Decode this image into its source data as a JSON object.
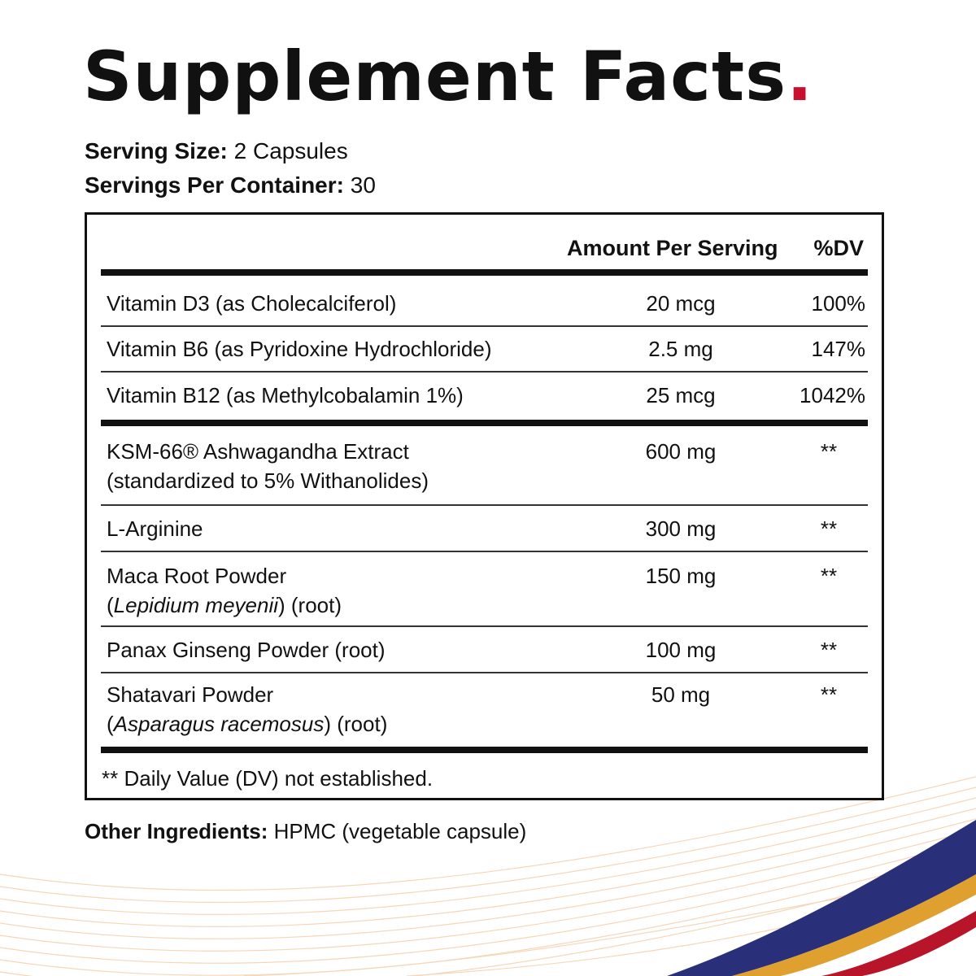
{
  "title": "Supplement Facts",
  "title_dot": ".",
  "serving_size": {
    "label": "Serving Size:",
    "value": " 2 Capsules"
  },
  "servings_per_container": {
    "label": "Servings Per Container:",
    "value": " 30"
  },
  "table": {
    "col_amount": "Amount Per Serving",
    "col_dv": "%DV",
    "rows": [
      {
        "name": "Vitamin D3 (as Cholecalciferol)",
        "amount": "20 mcg",
        "dv": "100%"
      },
      {
        "name": "Vitamin B6 (as Pyridoxine Hydrochloride)",
        "amount": "2.5 mg",
        "dv": "147%"
      },
      {
        "name": "Vitamin B12 (as Methylcobalamin 1%)",
        "amount": "25 mcg",
        "dv": "1042%"
      },
      {
        "name": "KSM-66® Ashwagandha Extract",
        "sub": "(standardized to 5% Withanolides)",
        "amount": "600 mg",
        "dv": "**"
      },
      {
        "name": "L-Arginine",
        "amount": "300 mg",
        "dv": "**"
      },
      {
        "name": "Maca Root Powder",
        "sub_pre": "(",
        "sub_italic": "Lepidium meyenii",
        "sub_post": ") (root)",
        "amount": "150 mg",
        "dv": "**"
      },
      {
        "name": "Panax Ginseng Powder (root)",
        "amount": "100 mg",
        "dv": "**"
      },
      {
        "name": "Shatavari Powder",
        "sub_pre": "(",
        "sub_italic": "Asparagus racemosus",
        "sub_post": ") (root)",
        "amount": "50 mg",
        "dv": "**"
      }
    ],
    "footnote": "** Daily Value (DV) not established."
  },
  "other_ingredients": {
    "label": "Other Ingredients:",
    "value": " HPMC (vegetable capsule)"
  },
  "colors": {
    "accent_red": "#c8102e",
    "wave_navy": "#2a2f7a",
    "wave_gold": "#e0a030",
    "wave_red": "#b8142a",
    "wave_lines": "#f2c9a0"
  }
}
